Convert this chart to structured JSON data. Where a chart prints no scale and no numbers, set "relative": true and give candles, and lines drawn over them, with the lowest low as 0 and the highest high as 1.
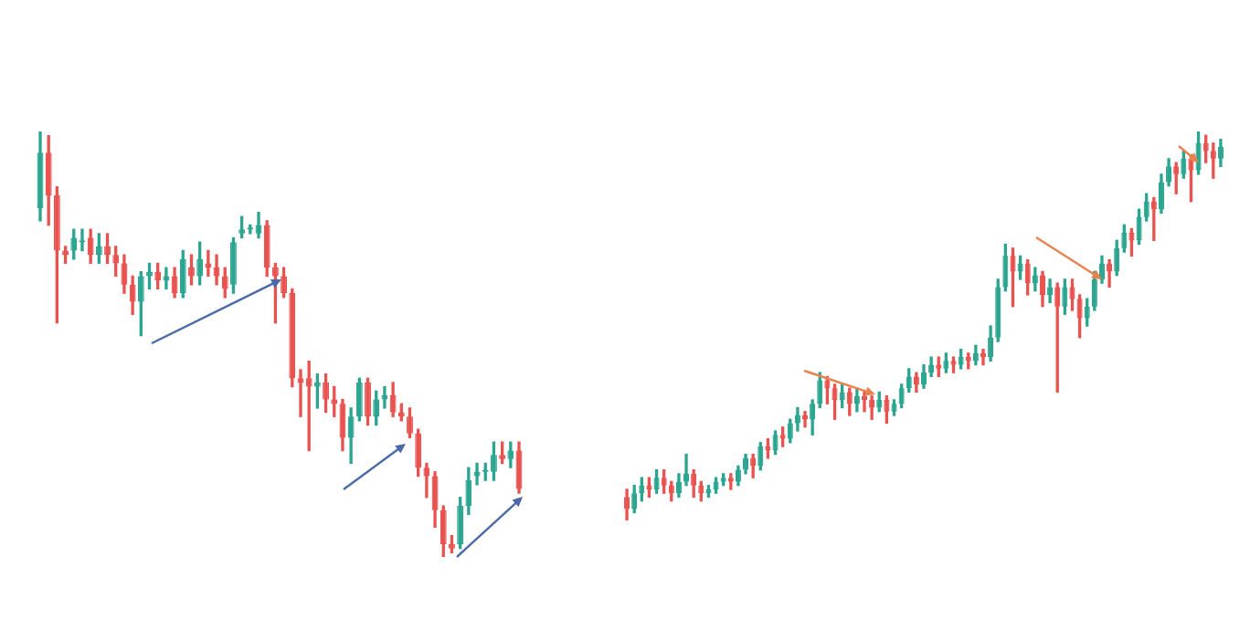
{
  "chart_data": [
    {
      "type": "candlestick",
      "relative": true,
      "legend": false,
      "categories": [
        null,
        null,
        null,
        null,
        null,
        null,
        null,
        null,
        null,
        null,
        null,
        null,
        null,
        null,
        null,
        null,
        null,
        null,
        null,
        null,
        null,
        null,
        null,
        null,
        null,
        null,
        null,
        null,
        null,
        null,
        null,
        null,
        null,
        null,
        null,
        null,
        null,
        null,
        null,
        null,
        null,
        null,
        null,
        null,
        null,
        null,
        null,
        null,
        null,
        null,
        null,
        null,
        null,
        null,
        null,
        null,
        null,
        null
      ],
      "ohlc": [
        [
          0.82,
          1,
          0.79,
          0.95
        ],
        [
          0.95,
          0.99,
          0.78,
          0.85
        ],
        [
          0.85,
          0.87,
          0.55,
          0.72
        ],
        [
          0.72,
          0.73,
          0.69,
          0.71
        ],
        [
          0.72,
          0.77,
          0.7,
          0.75
        ],
        [
          0.74,
          0.77,
          0.72,
          0.74
        ],
        [
          0.75,
          0.77,
          0.69,
          0.71
        ],
        [
          0.71,
          0.76,
          0.69,
          0.73
        ],
        [
          0.73,
          0.76,
          0.69,
          0.71
        ],
        [
          0.71,
          0.73,
          0.66,
          0.69
        ],
        [
          0.69,
          0.71,
          0.62,
          0.64
        ],
        [
          0.64,
          0.66,
          0.57,
          0.6
        ],
        [
          0.6,
          0.67,
          0.52,
          0.66
        ],
        [
          0.66,
          0.69,
          0.63,
          0.67
        ],
        [
          0.67,
          0.69,
          0.63,
          0.65
        ],
        [
          0.65,
          0.68,
          0.63,
          0.66
        ],
        [
          0.66,
          0.68,
          0.61,
          0.62
        ],
        [
          0.62,
          0.72,
          0.61,
          0.7
        ],
        [
          0.68,
          0.71,
          0.64,
          0.66
        ],
        [
          0.66,
          0.74,
          0.64,
          0.7
        ],
        [
          0.69,
          0.72,
          0.66,
          0.68
        ],
        [
          0.68,
          0.71,
          0.64,
          0.66
        ],
        [
          0.66,
          0.68,
          0.61,
          0.63
        ],
        [
          0.64,
          0.75,
          0.62,
          0.74
        ],
        [
          0.76,
          0.8,
          0.75,
          0.77
        ],
        [
          0.77,
          0.78,
          0.76,
          0.77
        ],
        [
          0.76,
          0.81,
          0.75,
          0.78
        ],
        [
          0.78,
          0.79,
          0.66,
          0.68
        ],
        [
          0.68,
          0.69,
          0.55,
          0.66
        ],
        [
          0.66,
          0.68,
          0.61,
          0.62
        ],
        [
          0.62,
          0.63,
          0.4,
          0.42
        ],
        [
          0.42,
          0.44,
          0.33,
          0.41
        ],
        [
          0.42,
          0.46,
          0.25,
          0.4
        ],
        [
          0.4,
          0.43,
          0.35,
          0.41
        ],
        [
          0.41,
          0.43,
          0.34,
          0.37
        ],
        [
          0.37,
          0.4,
          0.33,
          0.36
        ],
        [
          0.36,
          0.37,
          0.25,
          0.28
        ],
        [
          0.28,
          0.35,
          0.22,
          0.33
        ],
        [
          0.33,
          0.42,
          0.32,
          0.41
        ],
        [
          0.41,
          0.42,
          0.31,
          0.33
        ],
        [
          0.33,
          0.39,
          0.31,
          0.37
        ],
        [
          0.37,
          0.4,
          0.35,
          0.38
        ],
        [
          0.38,
          0.41,
          0.33,
          0.34
        ],
        [
          0.34,
          0.36,
          0.32,
          0.33
        ],
        [
          0.33,
          0.35,
          0.28,
          0.29
        ],
        [
          0.29,
          0.3,
          0.19,
          0.21
        ],
        [
          0.21,
          0.22,
          0.14,
          0.19
        ],
        [
          0.19,
          0.2,
          0.07,
          0.11
        ],
        [
          0.11,
          0.12,
          0,
          0.03
        ],
        [
          0.03,
          0.05,
          0.01,
          0.02
        ],
        [
          0.03,
          0.14,
          0.02,
          0.12
        ],
        [
          0.12,
          0.21,
          0.1,
          0.18
        ],
        [
          0.19,
          0.22,
          0.17,
          0.2
        ],
        [
          0.2,
          0.22,
          0.18,
          0.2
        ],
        [
          0.2,
          0.27,
          0.18,
          0.24
        ],
        [
          0.24,
          0.27,
          0.22,
          0.23
        ],
        [
          0.23,
          0.27,
          0.21,
          0.25
        ],
        [
          0.25,
          0.27,
          0.15,
          0.16
        ]
      ],
      "colors": [
        "#2ba58f",
        "#e8524f",
        "#e8524f",
        "#e8524f",
        "#2ba58f",
        "#2ba58f",
        "#e8524f",
        "#2ba58f",
        "#e8524f",
        "#e8524f",
        "#e8524f",
        "#e8524f",
        "#2ba58f",
        "#2ba58f",
        "#e8524f",
        "#2ba58f",
        "#e8524f",
        "#2ba58f",
        "#e8524f",
        "#2ba58f",
        "#e8524f",
        "#e8524f",
        "#e8524f",
        "#2ba58f",
        "#2ba58f",
        "#2ba58f",
        "#2ba58f",
        "#e8524f",
        "#e8524f",
        "#e8524f",
        "#e8524f",
        "#e8524f",
        "#e8524f",
        "#2ba58f",
        "#e8524f",
        "#e8524f",
        "#e8524f",
        "#2ba58f",
        "#2ba58f",
        "#e8524f",
        "#2ba58f",
        "#2ba58f",
        "#e8524f",
        "#e8524f",
        "#e8524f",
        "#e8524f",
        "#e8524f",
        "#e8524f",
        "#e8524f",
        "#e8524f",
        "#2ba58f",
        "#2ba58f",
        "#2ba58f",
        "#2ba58f",
        "#2ba58f",
        "#e8524f",
        "#2ba58f",
        "#e8524f"
      ]
    },
    {
      "type": "candlestick",
      "relative": true,
      "legend": false,
      "categories": [
        null,
        null,
        null,
        null,
        null,
        null,
        null,
        null,
        null,
        null,
        null,
        null,
        null,
        null,
        null,
        null,
        null,
        null,
        null,
        null,
        null,
        null,
        null,
        null,
        null,
        null,
        null,
        null,
        null,
        null,
        null,
        null,
        null,
        null,
        null,
        null,
        null,
        null,
        null,
        null,
        null,
        null,
        null,
        null,
        null,
        null,
        null,
        null,
        null,
        null,
        null,
        null,
        null,
        null,
        null,
        null,
        null,
        null,
        null,
        null,
        null,
        null,
        null,
        null,
        null,
        null,
        null,
        null,
        null,
        null,
        null,
        null,
        null,
        null,
        null,
        null,
        null,
        null,
        null,
        null,
        null
      ],
      "ohlc": [
        [
          0.06,
          0.08,
          0,
          0.03
        ],
        [
          0.03,
          0.09,
          0.02,
          0.07
        ],
        [
          0.07,
          0.11,
          0.05,
          0.09
        ],
        [
          0.09,
          0.11,
          0.06,
          0.08
        ],
        [
          0.08,
          0.13,
          0.07,
          0.11
        ],
        [
          0.11,
          0.13,
          0.07,
          0.09
        ],
        [
          0.09,
          0.1,
          0.05,
          0.07
        ],
        [
          0.07,
          0.12,
          0.06,
          0.1
        ],
        [
          0.1,
          0.17,
          0.09,
          0.12
        ],
        [
          0.12,
          0.13,
          0.06,
          0.09
        ],
        [
          0.09,
          0.1,
          0.05,
          0.07
        ],
        [
          0.07,
          0.09,
          0.06,
          0.08
        ],
        [
          0.08,
          0.11,
          0.07,
          0.1
        ],
        [
          0.1,
          0.12,
          0.09,
          0.11
        ],
        [
          0.11,
          0.12,
          0.08,
          0.1
        ],
        [
          0.1,
          0.14,
          0.09,
          0.13
        ],
        [
          0.13,
          0.17,
          0.12,
          0.16
        ],
        [
          0.16,
          0.17,
          0.11,
          0.14
        ],
        [
          0.14,
          0.2,
          0.13,
          0.19
        ],
        [
          0.19,
          0.21,
          0.16,
          0.18
        ],
        [
          0.18,
          0.23,
          0.17,
          0.22
        ],
        [
          0.22,
          0.24,
          0.19,
          0.21
        ],
        [
          0.21,
          0.26,
          0.2,
          0.25
        ],
        [
          0.25,
          0.29,
          0.23,
          0.27
        ],
        [
          0.27,
          0.28,
          0.24,
          0.26
        ],
        [
          0.26,
          0.31,
          0.22,
          0.3
        ],
        [
          0.3,
          0.38,
          0.29,
          0.36
        ],
        [
          0.36,
          0.37,
          0.3,
          0.34
        ],
        [
          0.34,
          0.35,
          0.26,
          0.31
        ],
        [
          0.31,
          0.35,
          0.29,
          0.33
        ],
        [
          0.33,
          0.34,
          0.27,
          0.3
        ],
        [
          0.3,
          0.34,
          0.28,
          0.32
        ],
        [
          0.32,
          0.33,
          0.28,
          0.31
        ],
        [
          0.31,
          0.32,
          0.26,
          0.29
        ],
        [
          0.29,
          0.33,
          0.28,
          0.31
        ],
        [
          0.31,
          0.32,
          0.25,
          0.28
        ],
        [
          0.28,
          0.31,
          0.27,
          0.3
        ],
        [
          0.3,
          0.35,
          0.29,
          0.34
        ],
        [
          0.34,
          0.39,
          0.33,
          0.37
        ],
        [
          0.37,
          0.38,
          0.33,
          0.35
        ],
        [
          0.35,
          0.4,
          0.34,
          0.38
        ],
        [
          0.38,
          0.42,
          0.37,
          0.4
        ],
        [
          0.4,
          0.42,
          0.37,
          0.39
        ],
        [
          0.39,
          0.43,
          0.38,
          0.41
        ],
        [
          0.41,
          0.42,
          0.38,
          0.4
        ],
        [
          0.4,
          0.44,
          0.39,
          0.42
        ],
        [
          0.42,
          0.43,
          0.39,
          0.41
        ],
        [
          0.41,
          0.45,
          0.4,
          0.43
        ],
        [
          0.43,
          0.44,
          0.4,
          0.42
        ],
        [
          0.42,
          0.5,
          0.41,
          0.47
        ],
        [
          0.47,
          0.62,
          0.46,
          0.6
        ],
        [
          0.6,
          0.71,
          0.59,
          0.68
        ],
        [
          0.68,
          0.7,
          0.55,
          0.64
        ],
        [
          0.64,
          0.68,
          0.62,
          0.66
        ],
        [
          0.66,
          0.67,
          0.58,
          0.61
        ],
        [
          0.61,
          0.65,
          0.59,
          0.63
        ],
        [
          0.63,
          0.64,
          0.55,
          0.58
        ],
        [
          0.58,
          0.62,
          0.56,
          0.6
        ],
        [
          0.6,
          0.61,
          0.33,
          0.55
        ],
        [
          0.55,
          0.62,
          0.53,
          0.6
        ],
        [
          0.6,
          0.62,
          0.54,
          0.57
        ],
        [
          0.57,
          0.58,
          0.47,
          0.52
        ],
        [
          0.52,
          0.57,
          0.5,
          0.55
        ],
        [
          0.55,
          0.64,
          0.54,
          0.62
        ],
        [
          0.62,
          0.68,
          0.61,
          0.66
        ],
        [
          0.66,
          0.67,
          0.6,
          0.64
        ],
        [
          0.64,
          0.72,
          0.63,
          0.7
        ],
        [
          0.7,
          0.76,
          0.69,
          0.74
        ],
        [
          0.74,
          0.75,
          0.68,
          0.72
        ],
        [
          0.72,
          0.8,
          0.71,
          0.78
        ],
        [
          0.78,
          0.84,
          0.77,
          0.82
        ],
        [
          0.82,
          0.83,
          0.72,
          0.8
        ],
        [
          0.8,
          0.89,
          0.79,
          0.87
        ],
        [
          0.87,
          0.93,
          0.86,
          0.91
        ],
        [
          0.91,
          0.92,
          0.84,
          0.89
        ],
        [
          0.89,
          0.95,
          0.88,
          0.93
        ],
        [
          0.93,
          0.94,
          0.82,
          0.9
        ],
        [
          0.9,
          1,
          0.89,
          0.97
        ],
        [
          0.97,
          0.99,
          0.92,
          0.95
        ],
        [
          0.95,
          0.97,
          0.88,
          0.93
        ],
        [
          0.93,
          0.98,
          0.91,
          0.96
        ]
      ],
      "colors": [
        "#e8524f",
        "#2ba58f",
        "#2ba58f",
        "#e8524f",
        "#2ba58f",
        "#e8524f",
        "#e8524f",
        "#2ba58f",
        "#2ba58f",
        "#e8524f",
        "#e8524f",
        "#2ba58f",
        "#2ba58f",
        "#2ba58f",
        "#e8524f",
        "#2ba58f",
        "#2ba58f",
        "#e8524f",
        "#2ba58f",
        "#e8524f",
        "#2ba58f",
        "#e8524f",
        "#2ba58f",
        "#2ba58f",
        "#e8524f",
        "#2ba58f",
        "#2ba58f",
        "#e8524f",
        "#e8524f",
        "#2ba58f",
        "#e8524f",
        "#2ba58f",
        "#e8524f",
        "#e8524f",
        "#2ba58f",
        "#e8524f",
        "#2ba58f",
        "#2ba58f",
        "#2ba58f",
        "#e8524f",
        "#2ba58f",
        "#2ba58f",
        "#e8524f",
        "#2ba58f",
        "#e8524f",
        "#2ba58f",
        "#e8524f",
        "#2ba58f",
        "#e8524f",
        "#2ba58f",
        "#2ba58f",
        "#2ba58f",
        "#e8524f",
        "#2ba58f",
        "#e8524f",
        "#2ba58f",
        "#e8524f",
        "#2ba58f",
        "#e8524f",
        "#2ba58f",
        "#e8524f",
        "#e8524f",
        "#2ba58f",
        "#2ba58f",
        "#2ba58f",
        "#e8524f",
        "#2ba58f",
        "#2ba58f",
        "#e8524f",
        "#2ba58f",
        "#2ba58f",
        "#e8524f",
        "#2ba58f",
        "#2ba58f",
        "#e8524f",
        "#2ba58f",
        "#e8524f",
        "#2ba58f",
        "#e8524f",
        "#e8524f",
        "#2ba58f"
      ]
    }
  ]
}
